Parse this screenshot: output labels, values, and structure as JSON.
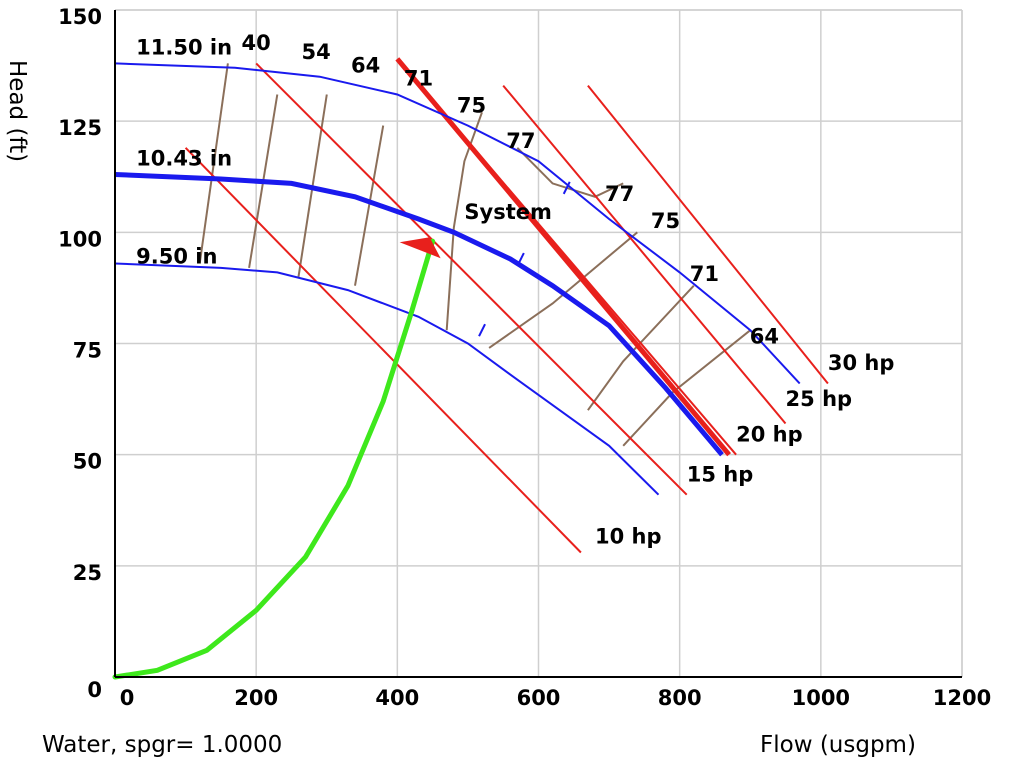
{
  "chart_data": {
    "type": "line",
    "xlabel": "Flow (usgpm)",
    "ylabel": "Head (ft)",
    "footnote": "Water, spgr= 1.0000",
    "xlim": [
      0,
      1200
    ],
    "ylim": [
      0,
      150
    ],
    "x_ticks": [
      "0",
      "200",
      "400",
      "600",
      "800",
      "1000",
      "1200"
    ],
    "y_ticks": [
      "0",
      "25",
      "50",
      "75",
      "100",
      "125",
      "150"
    ],
    "grid": true,
    "impeller_curves": [
      {
        "name": "11.50 in",
        "points": [
          [
            0,
            138
          ],
          [
            170,
            137
          ],
          [
            290,
            135
          ],
          [
            400,
            131
          ],
          [
            500,
            124
          ],
          [
            600,
            116
          ],
          [
            700,
            103
          ],
          [
            800,
            91
          ],
          [
            900,
            78
          ],
          [
            970,
            66
          ]
        ]
      },
      {
        "name": "10.43 in",
        "points": [
          [
            0,
            113
          ],
          [
            150,
            112
          ],
          [
            250,
            111
          ],
          [
            340,
            108
          ],
          [
            430,
            103
          ],
          [
            480,
            100
          ],
          [
            560,
            94
          ],
          [
            620,
            88
          ],
          [
            700,
            79
          ],
          [
            780,
            65
          ],
          [
            860,
            50
          ]
        ]
      },
      {
        "name": "9.50 in",
        "points": [
          [
            0,
            93
          ],
          [
            150,
            92
          ],
          [
            230,
            91
          ],
          [
            330,
            87
          ],
          [
            430,
            81
          ],
          [
            500,
            75
          ],
          [
            560,
            68
          ],
          [
            630,
            60
          ],
          [
            700,
            52
          ],
          [
            770,
            41
          ]
        ]
      }
    ],
    "bold_curve": "10.43 in",
    "power_lines": [
      {
        "label": "10 hp",
        "points": [
          [
            100,
            119
          ],
          [
            660,
            28
          ]
        ]
      },
      {
        "label": "15 hp",
        "points": [
          [
            200,
            138
          ],
          [
            810,
            41
          ]
        ]
      },
      {
        "label": "20 hp",
        "points": [
          [
            400,
            139
          ],
          [
            880,
            50
          ]
        ]
      },
      {
        "label": "25 hp",
        "points": [
          [
            550,
            133
          ],
          [
            950,
            57
          ]
        ]
      },
      {
        "label": "30 hp",
        "points": [
          [
            670,
            133
          ],
          [
            1010,
            66
          ]
        ]
      }
    ],
    "efficiency_labels": [
      {
        "label": "40",
        "x": 200,
        "y": 141
      },
      {
        "label": "54",
        "x": 285,
        "y": 139
      },
      {
        "label": "64",
        "x": 355,
        "y": 136
      },
      {
        "label": "71",
        "x": 430,
        "y": 133
      },
      {
        "label": "75",
        "x": 505,
        "y": 127
      },
      {
        "label": "77",
        "x": 575,
        "y": 119
      },
      {
        "label": "77",
        "x": 715,
        "y": 107
      },
      {
        "label": "75",
        "x": 780,
        "y": 101
      },
      {
        "label": "71",
        "x": 835,
        "y": 89
      },
      {
        "label": "64",
        "x": 920,
        "y": 75
      }
    ],
    "efficiency_lines": [
      {
        "points": [
          [
            120,
            93
          ],
          [
            160,
            138
          ]
        ]
      },
      {
        "points": [
          [
            190,
            92
          ],
          [
            230,
            131
          ]
        ]
      },
      {
        "points": [
          [
            260,
            90
          ],
          [
            300,
            131
          ]
        ]
      },
      {
        "points": [
          [
            340,
            88
          ],
          [
            380,
            124
          ]
        ]
      },
      {
        "points": [
          [
            470,
            78
          ],
          [
            480,
            101
          ],
          [
            495,
            116
          ],
          [
            520,
            127
          ]
        ]
      },
      {
        "points": [
          [
            530,
            74
          ],
          [
            620,
            84
          ],
          [
            740,
            100
          ]
        ]
      },
      {
        "points": [
          [
            670,
            60
          ],
          [
            720,
            71
          ],
          [
            820,
            88
          ]
        ]
      },
      {
        "points": [
          [
            720,
            52
          ],
          [
            790,
            64
          ],
          [
            900,
            78
          ]
        ]
      },
      {
        "points": [
          [
            570,
            119
          ],
          [
            620,
            111
          ],
          [
            680,
            108
          ],
          [
            720,
            111
          ]
        ]
      }
    ],
    "bep_ticks": [
      [
        640,
        110
      ],
      [
        575,
        94
      ],
      [
        520,
        78
      ]
    ],
    "system_curve": {
      "label": "System",
      "points": [
        [
          0,
          0
        ],
        [
          60,
          1.5
        ],
        [
          130,
          6
        ],
        [
          200,
          15
        ],
        [
          270,
          27
        ],
        [
          330,
          43
        ],
        [
          380,
          62
        ],
        [
          420,
          82
        ],
        [
          450,
          98
        ]
      ]
    },
    "operating_point": {
      "x": 450,
      "y": 98
    },
    "red_line": {
      "points": [
        [
          400,
          139
        ],
        [
          870,
          50
        ]
      ]
    },
    "label_positions": {
      "11.50 in": [
        30,
        140
      ],
      "10.43 in": [
        30,
        115
      ],
      "9.50 in": [
        30,
        93
      ],
      "System": [
        495,
        103
      ],
      "10 hp": [
        680,
        30
      ],
      "15 hp": [
        810,
        44
      ],
      "20 hp": [
        880,
        53
      ],
      "25 hp": [
        950,
        61
      ],
      "30 hp": [
        1010,
        69
      ]
    }
  }
}
